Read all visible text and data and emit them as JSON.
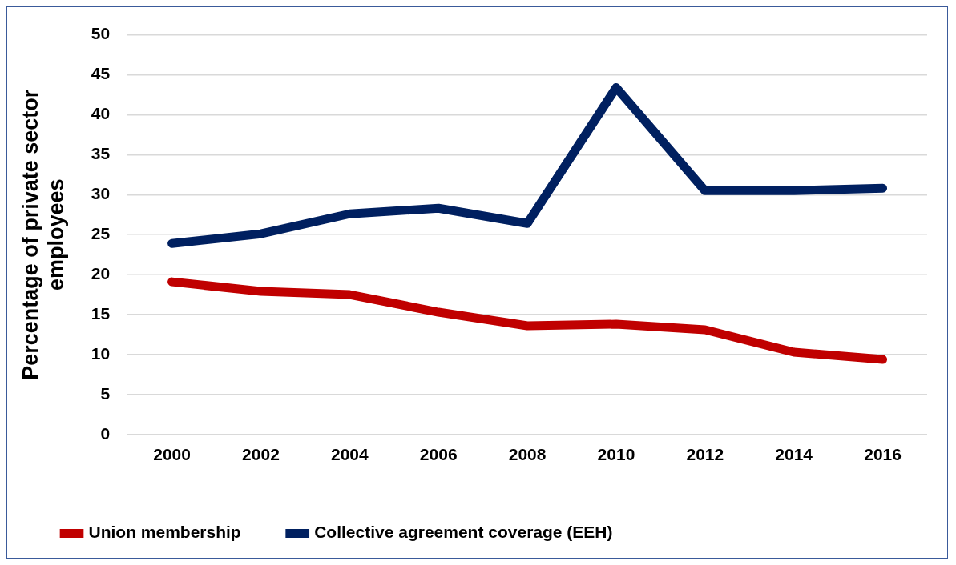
{
  "chart_data": {
    "type": "line",
    "ylabel": "Percentage of private sector employees",
    "categories": [
      "2000",
      "2002",
      "2004",
      "2006",
      "2008",
      "2010",
      "2012",
      "2014",
      "2016"
    ],
    "series": [
      {
        "name": "Union membership",
        "color": "#c00000",
        "values": [
          19.1,
          17.9,
          17.5,
          15.3,
          13.6,
          13.8,
          13.1,
          10.3,
          9.4
        ]
      },
      {
        "name": "Collective agreement coverage (EEH)",
        "color": "#002060",
        "values": [
          23.9,
          25.1,
          27.6,
          28.3,
          26.4,
          43.4,
          30.5,
          30.5,
          30.8
        ]
      }
    ],
    "ylim": [
      0,
      50
    ],
    "yticks": [
      0,
      5,
      10,
      15,
      20,
      25,
      30,
      35,
      40,
      45,
      50
    ],
    "grid": "y",
    "legend": "bottom",
    "marker": "none",
    "line_style": "solid"
  }
}
